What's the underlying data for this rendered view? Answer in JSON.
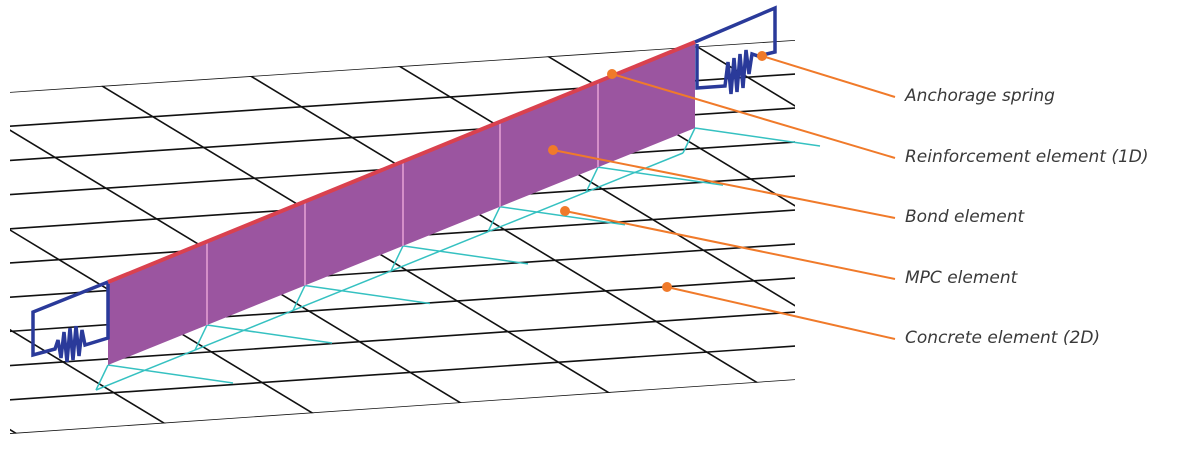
{
  "labels": {
    "anchorage_spring": "Anchorage spring",
    "reinforcement": "Reinforcement element (1D)",
    "bond": "Bond element",
    "mpc": "MPC element",
    "concrete": "Concrete element (2D)"
  },
  "colors": {
    "mesh": "#111111",
    "reinforcement": "#d9414f",
    "bond_fill": "#9b55a0",
    "bond_divider": "#e6a3d6",
    "mpc": "#35c1c1",
    "spring": "#2a3a9a",
    "leader": "#f07a2a",
    "label_text": "#3a3a3a"
  }
}
